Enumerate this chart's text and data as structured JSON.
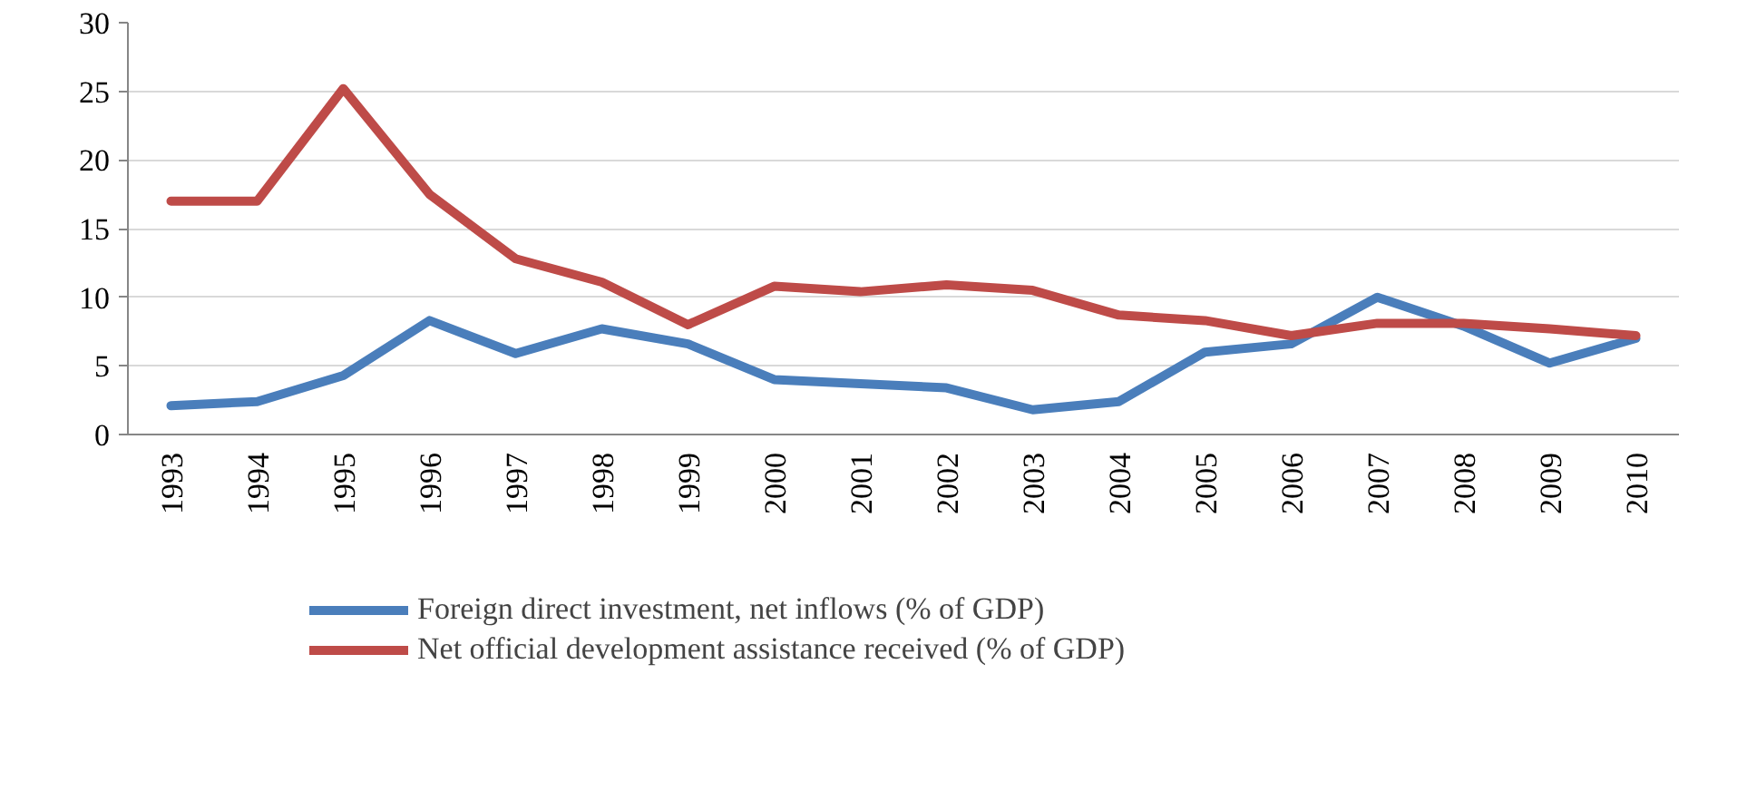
{
  "chart_data": {
    "type": "line",
    "categories": [
      "1993",
      "1994",
      "1995",
      "1996",
      "1997",
      "1998",
      "1999",
      "2000",
      "2001",
      "2002",
      "2003",
      "2004",
      "2005",
      "2006",
      "2007",
      "2008",
      "2009",
      "2010"
    ],
    "series": [
      {
        "name": "Foreign direct investment, net inflows (% of GDP)",
        "color": "#4a7ebb",
        "values": [
          2.1,
          2.4,
          4.3,
          8.3,
          5.9,
          7.7,
          6.6,
          4.0,
          3.7,
          3.4,
          1.8,
          2.4,
          6.0,
          6.6,
          10.0,
          7.9,
          5.2,
          7.0
        ]
      },
      {
        "name": "Net official development assistance received (% of GDP)",
        "color": "#be4b48",
        "values": [
          17.0,
          17.0,
          25.2,
          17.5,
          12.8,
          11.1,
          8.0,
          10.8,
          10.4,
          10.9,
          10.5,
          8.7,
          8.3,
          7.2,
          8.1,
          8.1,
          7.7,
          7.2
        ]
      }
    ],
    "ylim": [
      0,
      30
    ],
    "yticks": [
      0,
      5,
      10,
      15,
      20,
      25,
      30
    ],
    "grid": "y",
    "legend": "bottom",
    "marker": "none",
    "line_style": "solid"
  }
}
